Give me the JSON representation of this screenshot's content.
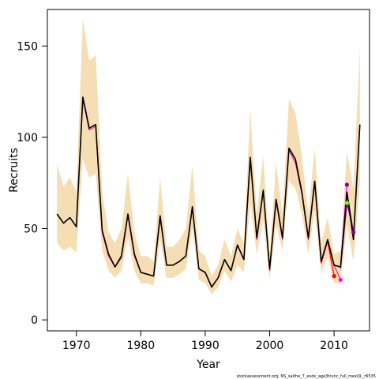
{
  "chart_data": {
    "type": "line",
    "title": "",
    "xlabel": "Year",
    "ylabel": "Recruits",
    "xlim": [
      1965.5,
      2015.5
    ],
    "ylim": [
      -6,
      170
    ],
    "xticks": [
      1970,
      1980,
      1990,
      2000,
      2010
    ],
    "yticks": [
      0,
      50,
      100,
      150
    ],
    "grid": false,
    "legend": "none",
    "colors": {
      "band": "#f5deb3",
      "main": "#000000",
      "retro": [
        "#ff0000",
        "#ff00ff",
        "#8b008b",
        "#006400",
        "#7cfc00",
        "#ff1493"
      ]
    },
    "x": [
      1967,
      1968,
      1969,
      1970,
      1971,
      1972,
      1973,
      1974,
      1975,
      1976,
      1977,
      1978,
      1979,
      1980,
      1981,
      1982,
      1983,
      1984,
      1985,
      1986,
      1987,
      1988,
      1989,
      1990,
      1991,
      1992,
      1993,
      1994,
      1995,
      1996,
      1997,
      1998,
      1999,
      2000,
      2001,
      2002,
      2003,
      2004,
      2005,
      2006,
      2007,
      2008,
      2009,
      2010,
      2011,
      2012,
      2013,
      2014
    ],
    "band": {
      "lower": [
        42,
        38,
        40,
        37,
        88,
        78,
        80,
        38,
        27,
        23,
        27,
        45,
        27,
        20,
        20,
        19,
        44,
        23,
        23,
        25,
        28,
        50,
        22,
        20,
        14,
        18,
        27,
        21,
        30,
        26,
        64,
        36,
        55,
        22,
        52,
        38,
        76,
        72,
        58,
        36,
        60,
        26,
        35,
        20,
        20,
        52,
        32,
        75
      ],
      "upper": [
        85,
        73,
        78,
        70,
        165,
        142,
        145,
        70,
        48,
        42,
        50,
        80,
        48,
        35,
        35,
        32,
        78,
        40,
        40,
        44,
        50,
        85,
        38,
        35,
        24,
        30,
        44,
        35,
        50,
        42,
        115,
        58,
        90,
        36,
        86,
        58,
        121,
        113,
        90,
        58,
        94,
        42,
        56,
        36,
        38,
        92,
        72,
        150
      ]
    },
    "series": [
      {
        "values": [
          58,
          53,
          56,
          51,
          122,
          105,
          107,
          49,
          36,
          29,
          35,
          58,
          36,
          26,
          25,
          24,
          57,
          30,
          30,
          32,
          35,
          62,
          28,
          26,
          18,
          23,
          33,
          27,
          41,
          33,
          89,
          45,
          71,
          28,
          66,
          45,
          94,
          88,
          70,
          45,
          76,
          32,
          44,
          30,
          29,
          70,
          44,
          107
        ]
      },
      {
        "x": [
          1967,
          1968,
          1969,
          1970,
          1971,
          1972,
          1973,
          1974,
          1975,
          1976,
          1977,
          1978,
          1979,
          1980,
          1981,
          1982,
          1983,
          1984,
          1985,
          1986,
          1987,
          1988,
          1989,
          1990,
          1991,
          1992,
          1993,
          1994,
          1995,
          1996,
          1997,
          1998,
          1999,
          2000,
          2001,
          2002,
          2003,
          2004,
          2005,
          2006,
          2007,
          2008,
          2009,
          2010,
          2011
        ],
        "values": [
          58,
          53,
          56,
          51,
          121,
          104,
          106,
          48,
          35,
          29,
          34,
          57,
          35,
          26,
          25,
          24,
          56,
          30,
          30,
          32,
          35,
          61,
          28,
          26,
          18,
          23,
          33,
          27,
          41,
          33,
          88,
          44,
          70,
          27,
          65,
          44,
          93,
          86,
          69,
          44,
          75,
          31,
          43,
          30,
          22
        ]
      },
      {
        "x": [
          2009,
          2010
        ],
        "values": [
          43,
          24
        ]
      },
      {
        "x": [
          2011,
          2012
        ],
        "values": [
          29,
          74
        ]
      },
      {
        "x": [
          2012,
          2013
        ],
        "values": [
          70,
          48
        ]
      },
      {
        "x": [
          2011,
          2012,
          2013
        ],
        "values": [
          28,
          64,
          49
        ]
      }
    ],
    "endpoints": [
      {
        "x": 2010,
        "y": 24
      },
      {
        "x": 2011,
        "y": 22
      },
      {
        "x": 2012,
        "y": 74
      },
      {
        "x": 2013,
        "y": 48
      },
      {
        "x": 2012,
        "y": 64
      }
    ],
    "credit": "stockassessment.org, NS_saithe_7_exdx_age3trunc_full_mexQL_r6535"
  }
}
